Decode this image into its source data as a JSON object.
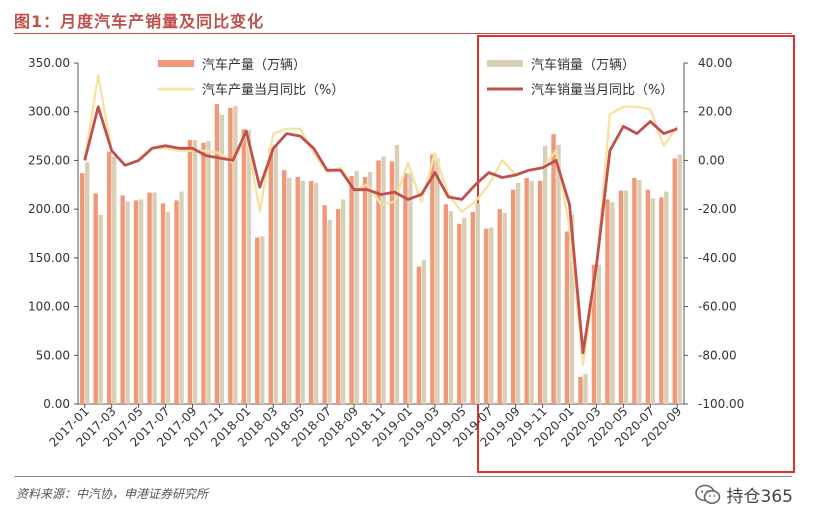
{
  "figure_title": "图1：月度汽车产销量及同比变化",
  "source": "资料来源：中汽协，申港证券研究所",
  "watermark": {
    "text": "持仓365",
    "icon": "wechat-icon"
  },
  "colors": {
    "production_bar": "#f0987a",
    "sales_bar": "#d8cfb6",
    "production_yoy": "#f6e3a4",
    "sales_yoy": "#c0504d",
    "highlight_box": "#e0312e",
    "title": "#c0504d"
  },
  "chart_data": {
    "type": "bar",
    "categories": [
      "2017-01",
      "2017-02",
      "2017-03",
      "2017-04",
      "2017-05",
      "2017-06",
      "2017-07",
      "2017-08",
      "2017-09",
      "2017-10",
      "2017-11",
      "2017-12",
      "2018-01",
      "2018-02",
      "2018-03",
      "2018-04",
      "2018-05",
      "2018-06",
      "2018-07",
      "2018-08",
      "2018-09",
      "2018-10",
      "2018-11",
      "2018-12",
      "2019-01",
      "2019-02",
      "2019-03",
      "2019-04",
      "2019-05",
      "2019-06",
      "2019-07",
      "2019-08",
      "2019-09",
      "2019-10",
      "2019-11",
      "2019-12",
      "2020-01",
      "2020-02",
      "2020-03",
      "2020-04",
      "2020-05",
      "2020-06",
      "2020-07",
      "2020-08",
      "2020-09"
    ],
    "x_tick_labels": [
      "2017-01",
      "2017-03",
      "2017-05",
      "2017-07",
      "2017-09",
      "2017-11",
      "2018-01",
      "2018-03",
      "2018-05",
      "2018-07",
      "2018-09",
      "2018-11",
      "2019-01",
      "2019-03",
      "2019-05",
      "2019-07",
      "2019-09",
      "2019-11",
      "2020-01",
      "2020-03",
      "2020-05",
      "2020-07",
      "2020-09"
    ],
    "series": [
      {
        "name": "汽车产量（万辆）",
        "kind": "bar",
        "axis": "left",
        "values": [
          237,
          216,
          259,
          214,
          209,
          217,
          206,
          209,
          271,
          268,
          308,
          304,
          282,
          171,
          263,
          240,
          233,
          229,
          204,
          200,
          234,
          233,
          250,
          249,
          237,
          141,
          256,
          205,
          185,
          197,
          180,
          200,
          220,
          232,
          229,
          277,
          177,
          28,
          143,
          210,
          219,
          232,
          220,
          212,
          252
        ]
      },
      {
        "name": "汽车销量（万辆）",
        "kind": "bar",
        "axis": "left",
        "values": [
          248,
          194,
          254,
          208,
          210,
          217,
          197,
          218,
          271,
          270,
          297,
          306,
          281,
          172,
          265,
          232,
          229,
          227,
          189,
          210,
          239,
          238,
          254,
          266,
          237,
          148,
          252,
          198,
          191,
          206,
          181,
          196,
          227,
          229,
          265,
          266,
          194,
          31,
          143,
          207,
          219,
          230,
          211,
          218,
          256
        ]
      },
      {
        "name": "汽车产量当月同比（%）",
        "kind": "line",
        "axis": "right",
        "values": [
          0,
          35,
          4,
          -2,
          0,
          5,
          5,
          4,
          4,
          4,
          3,
          -1,
          11,
          -21,
          11,
          13,
          13,
          3,
          -5,
          -3,
          -12,
          -10,
          -18,
          -17,
          -1,
          -17,
          3,
          -14,
          -21,
          -17,
          -10,
          0,
          -6,
          -4,
          -3,
          4,
          -28,
          -84,
          -44,
          19,
          22,
          22,
          21,
          6,
          14
        ]
      },
      {
        "name": "汽车销量当月同比（%）",
        "kind": "line",
        "axis": "right",
        "values": [
          0,
          22,
          4,
          -2,
          0,
          5,
          6,
          5,
          5,
          2,
          1,
          0,
          12,
          -11,
          5,
          11,
          10,
          5,
          -4,
          -4,
          -12,
          -12,
          -14,
          -13,
          -16,
          -14,
          -5,
          -15,
          -16,
          -10,
          -5,
          -7,
          -6,
          -4,
          -3,
          0,
          -18,
          -79,
          -43,
          4,
          14,
          11,
          16,
          11,
          13
        ]
      }
    ],
    "y_left": {
      "ylim": [
        0,
        350
      ],
      "ticks": [
        "0.00",
        "50.00",
        "100.00",
        "150.00",
        "200.00",
        "250.00",
        "300.00",
        "350.00"
      ]
    },
    "y_right": {
      "ylim": [
        -100,
        40
      ],
      "ticks": [
        "-100.00",
        "-80.00",
        "-60.00",
        "-40.00",
        "-20.00",
        "0.00",
        "20.00",
        "40.00"
      ]
    },
    "grid": false,
    "legend": "top",
    "highlight_range": [
      "2019-07",
      "2020-09"
    ]
  }
}
